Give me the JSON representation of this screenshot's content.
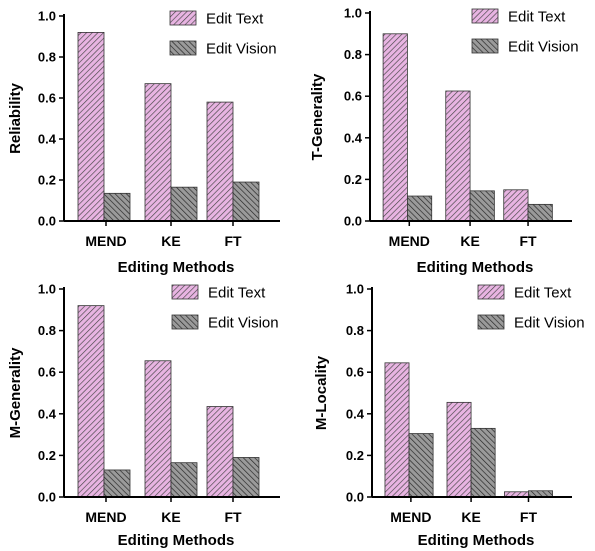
{
  "legend": {
    "text_label": "Edit Text",
    "vision_label": "Edit Vision"
  },
  "colors": {
    "text_fill": "#e8b4e2",
    "text_stripe": "#444444",
    "vision_fill": "#9a9a9a",
    "vision_stripe": "#222222"
  },
  "chart_data": [
    {
      "type": "bar",
      "categories": [
        "MEND",
        "KE",
        "FT"
      ],
      "series": [
        {
          "name": "Edit Text",
          "values": [
            0.92,
            0.67,
            0.58
          ]
        },
        {
          "name": "Edit Vision",
          "values": [
            0.135,
            0.165,
            0.19
          ]
        }
      ],
      "xlabel": "Editing Methods",
      "ylabel": "Reliability",
      "ylim": [
        0,
        1.0
      ],
      "yticks": [
        "0.0",
        "0.2",
        "0.4",
        "0.6",
        "0.8",
        "1.0"
      ],
      "legend_position": "top-right"
    },
    {
      "type": "bar",
      "categories": [
        "MEND",
        "KE",
        "FT"
      ],
      "series": [
        {
          "name": "Edit Text",
          "values": [
            0.9,
            0.625,
            0.15
          ]
        },
        {
          "name": "Edit Vision",
          "values": [
            0.12,
            0.145,
            0.08
          ]
        }
      ],
      "xlabel": "Editing Methods",
      "ylabel": "T-Generality",
      "ylim": [
        0,
        1.0
      ],
      "yticks": [
        "0.0",
        "0.2",
        "0.4",
        "0.6",
        "0.8",
        "1.0"
      ],
      "legend_position": "top-right"
    },
    {
      "type": "bar",
      "categories": [
        "MEND",
        "KE",
        "FT"
      ],
      "series": [
        {
          "name": "Edit Text",
          "values": [
            0.92,
            0.655,
            0.435
          ]
        },
        {
          "name": "Edit Vision",
          "values": [
            0.13,
            0.165,
            0.19
          ]
        }
      ],
      "xlabel": "Editing Methods",
      "ylabel": "M-Generality",
      "ylim": [
        0,
        1.0
      ],
      "yticks": [
        "0.0",
        "0.2",
        "0.4",
        "0.6",
        "0.8",
        "1.0"
      ],
      "legend_position": "top-right"
    },
    {
      "type": "bar",
      "categories": [
        "MEND",
        "KE",
        "FT"
      ],
      "series": [
        {
          "name": "Edit Text",
          "values": [
            0.645,
            0.455,
            0.025
          ]
        },
        {
          "name": "Edit Vision",
          "values": [
            0.305,
            0.33,
            0.03
          ]
        }
      ],
      "xlabel": "Editing Methods",
      "ylabel": "M-Locality",
      "ylim": [
        0,
        1.0
      ],
      "yticks": [
        "0.0",
        "0.2",
        "0.4",
        "0.6",
        "0.8",
        "1.0"
      ],
      "legend_position": "top-right"
    }
  ]
}
